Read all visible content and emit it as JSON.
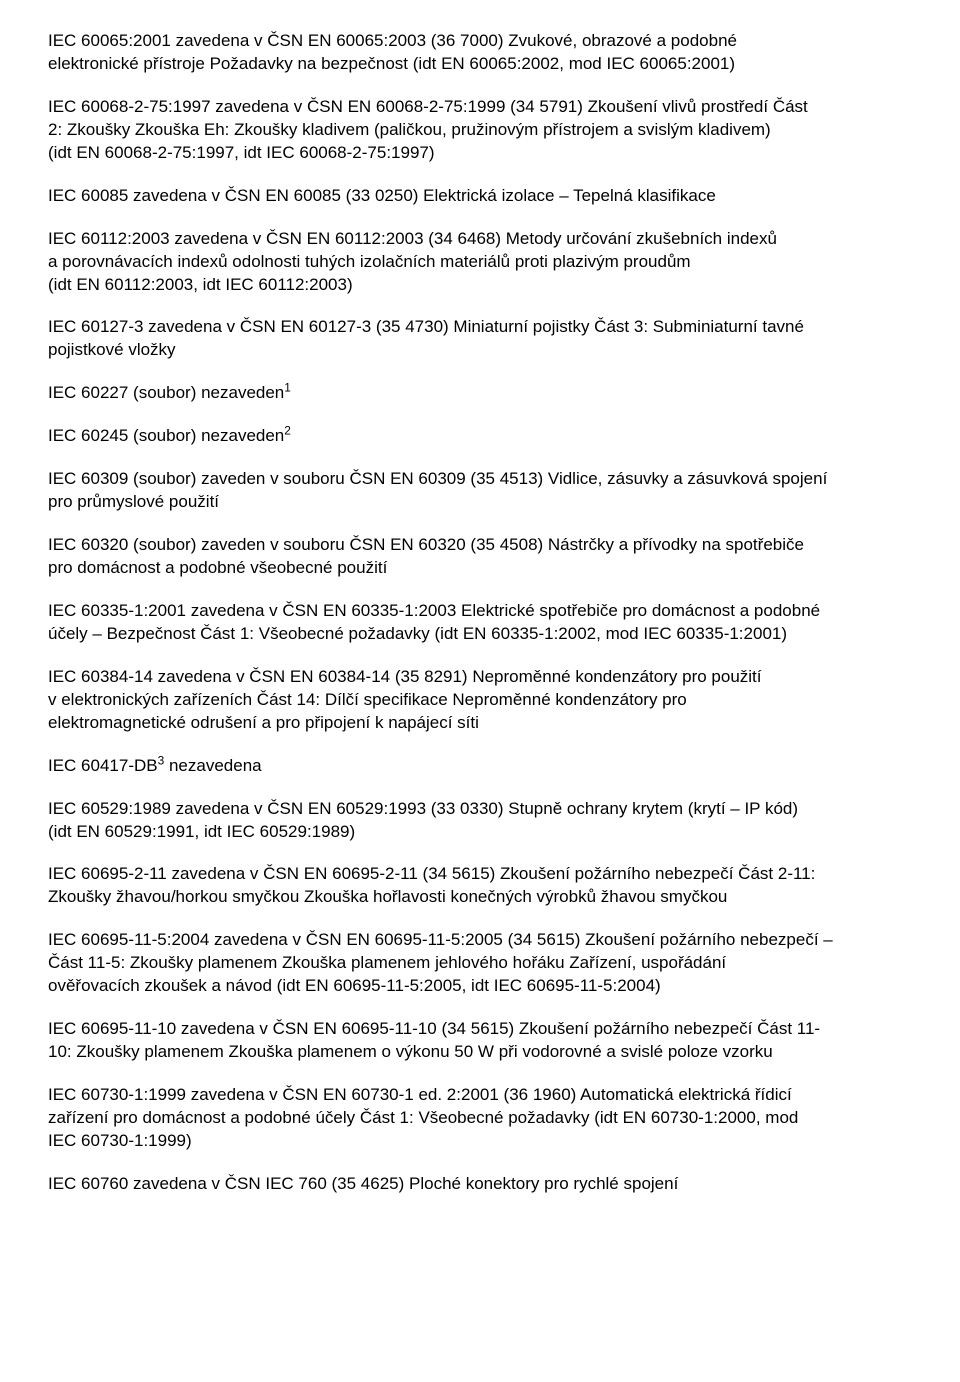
{
  "paragraphs": [
    {
      "lines": [
        "IEC 60065:2001 zavedena v ČSN EN 60065:2003 (36 7000) Zvukové, obrazové a podobné",
        "elektronické přístroje Požadavky na bezpečnost (idt EN 60065:2002, mod IEC 60065:2001)"
      ]
    },
    {
      "lines": [
        "IEC 60068-2-75:1997 zavedena v ČSN EN 60068-2-75:1999 (34 5791) Zkoušení vlivů prostředí Část",
        "2: Zkoušky Zkouška Eh: Zkoušky kladivem (paličkou, pružinovým přístrojem a svislým kladivem)",
        "(idt EN 60068-2-75:1997, idt IEC 60068-2-75:1997)"
      ]
    },
    {
      "lines": [
        "IEC 60085 zavedena v ČSN EN 60085 (33 0250) Elektrická izolace – Tepelná klasifikace"
      ]
    },
    {
      "lines": [
        "IEC 60112:2003 zavedena v ČSN EN 60112:2003 (34 6468) Metody určování zkušebních indexů",
        "a porovnávacích indexů odolnosti tuhých izolačních materiálů proti plazivým proudům",
        "(idt EN 60112:2003, idt IEC 60112:2003)"
      ]
    },
    {
      "lines": [
        "IEC 60127-3 zavedena v ČSN EN 60127-3 (35 4730) Miniaturní pojistky Část 3: Subminiaturní tavné",
        "pojistkové vložky"
      ]
    },
    {
      "lines": [
        "IEC 60227 (soubor) nezaveden"
      ],
      "sup": "1"
    },
    {
      "lines": [
        "IEC 60245 (soubor) nezaveden"
      ],
      "sup": "2"
    },
    {
      "lines": [
        "IEC 60309 (soubor) zaveden v souboru ČSN EN 60309 (35 4513) Vidlice, zásuvky a zásuvková spojení",
        "pro průmyslové použití"
      ]
    },
    {
      "lines": [
        "IEC 60320 (soubor) zaveden v souboru ČSN EN 60320 (35 4508) Nástrčky a přívodky na spotřebiče",
        "pro domácnost a podobné všeobecné použití"
      ]
    },
    {
      "lines": [
        "IEC 60335-1:2001 zavedena v ČSN EN 60335-1:2003 Elektrické spotřebiče pro domácnost a podobné",
        "účely – Bezpečnost Část 1: Všeobecné požadavky (idt EN 60335-1:2002, mod IEC 60335-1:2001)"
      ]
    },
    {
      "lines": [
        "IEC 60384-14 zavedena v ČSN EN 60384-14 (35 8291) Neproměnné kondenzátory pro použití",
        "v elektronických zařízeních Část 14: Dílčí specifikace Neproměnné kondenzátory pro",
        "elektromagnetické odrušení a pro připojení k napájecí síti"
      ]
    },
    {
      "lines": [
        "IEC 60417-DB"
      ],
      "sup": "3",
      "after": " nezavedena"
    },
    {
      "lines": [
        "IEC 60529:1989 zavedena v ČSN EN 60529:1993 (33 0330) Stupně ochrany krytem (krytí – IP kód)",
        "(idt EN 60529:1991, idt IEC 60529:1989)"
      ]
    },
    {
      "lines": [
        "IEC 60695-2-11 zavedena v ČSN EN 60695-2-11 (34 5615) Zkoušení požárního nebezpečí Část 2-11:",
        "Zkoušky žhavou/horkou smyčkou Zkouška hořlavosti konečných výrobků žhavou smyčkou"
      ]
    },
    {
      "lines": [
        "IEC 60695-11-5:2004 zavedena v ČSN EN 60695-11-5:2005 (34 5615) Zkoušení požárního nebezpečí –",
        "Část 11-5: Zkoušky plamenem Zkouška plamenem jehlového hořáku Zařízení, uspořádání",
        "ověřovacích zkoušek a návod (idt EN 60695-11-5:2005, idt IEC 60695-11-5:2004)"
      ]
    },
    {
      "lines": [
        "IEC 60695-11-10 zavedena v ČSN EN 60695-11-10 (34 5615) Zkoušení požárního nebezpečí Část 11-",
        "10: Zkoušky plamenem Zkouška plamenem o výkonu 50 W při vodorovné a svislé poloze vzorku"
      ]
    },
    {
      "lines": [
        "IEC 60730-1:1999 zavedena v ČSN EN 60730-1 ed. 2:2001 (36 1960) Automatická elektrická řídicí",
        "zařízení pro domácnost a podobné účely Část 1: Všeobecné požadavky (idt EN 60730-1:2000, mod",
        "IEC 60730-1:1999)"
      ]
    },
    {
      "lines": [
        "IEC 60760 zavedena v ČSN IEC 760 (35 4625) Ploché konektory pro rychlé spojení"
      ]
    }
  ]
}
